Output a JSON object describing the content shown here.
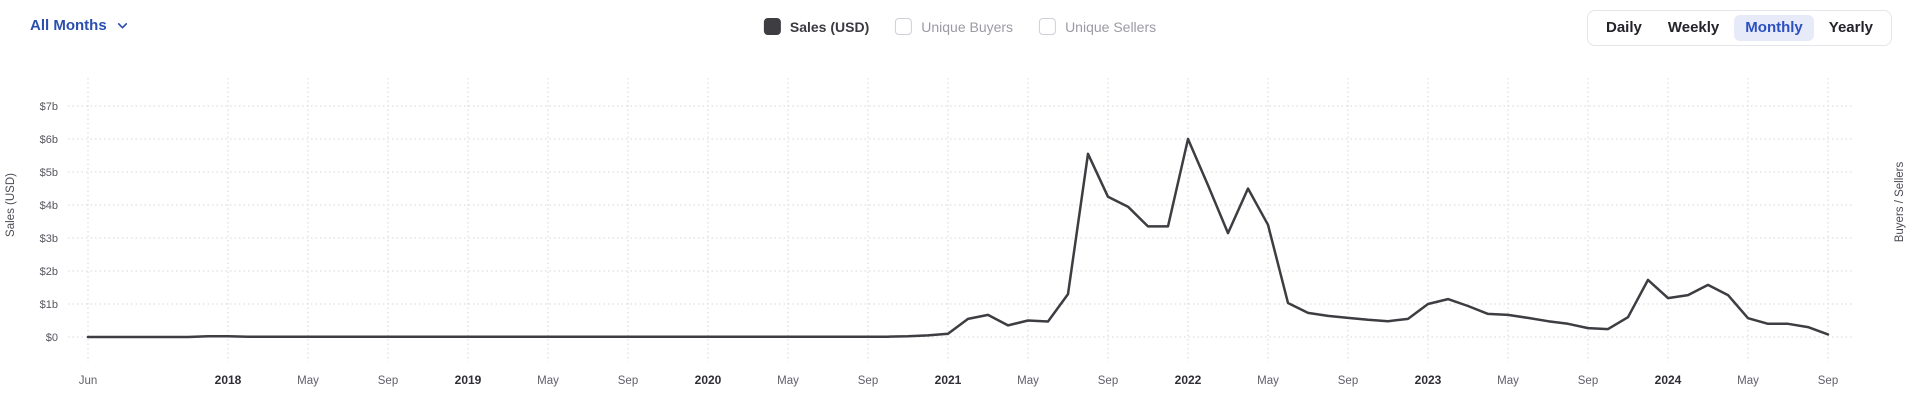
{
  "header": {
    "range_selector": {
      "label": "All Months"
    },
    "legend": [
      {
        "label": "Sales (USD)",
        "checked": true
      },
      {
        "label": "Unique Buyers",
        "checked": false
      },
      {
        "label": "Unique Sellers",
        "checked": false
      }
    ],
    "interval_buttons": [
      {
        "label": "Daily",
        "active": false
      },
      {
        "label": "Weekly",
        "active": false
      },
      {
        "label": "Monthly",
        "active": true
      },
      {
        "label": "Yearly",
        "active": false
      }
    ]
  },
  "colors": {
    "accent_blue": "#2b4fae",
    "active_button_bg": "#e7eaf8",
    "active_button_text": "#2b50c0",
    "line": "#3d3d42",
    "grid": "#d7d7db",
    "checked_checkbox": "#3d3d42"
  },
  "chart_data": {
    "type": "line",
    "title": "",
    "ylabel_left": "Sales (USD)",
    "ylabel_right": "Buyers / Sellers",
    "y_ticks": [
      "$0",
      "$1b",
      "$2b",
      "$3b",
      "$4b",
      "$5b",
      "$6b",
      "$7b"
    ],
    "ylim": [
      0,
      7.5
    ],
    "y_unit": "billions USD",
    "x_interval": "monthly",
    "x_first_month": "Jun 2017",
    "x_last_month": "Sep 2024",
    "x_ticks": [
      {
        "i": 0,
        "label": "Jun",
        "year": false
      },
      {
        "i": 7,
        "label": "2018",
        "year": true
      },
      {
        "i": 11,
        "label": "May",
        "year": false
      },
      {
        "i": 15,
        "label": "Sep",
        "year": false
      },
      {
        "i": 19,
        "label": "2019",
        "year": true
      },
      {
        "i": 23,
        "label": "May",
        "year": false
      },
      {
        "i": 27,
        "label": "Sep",
        "year": false
      },
      {
        "i": 31,
        "label": "2020",
        "year": true
      },
      {
        "i": 35,
        "label": "May",
        "year": false
      },
      {
        "i": 39,
        "label": "Sep",
        "year": false
      },
      {
        "i": 43,
        "label": "2021",
        "year": true
      },
      {
        "i": 47,
        "label": "May",
        "year": false
      },
      {
        "i": 51,
        "label": "Sep",
        "year": false
      },
      {
        "i": 55,
        "label": "2022",
        "year": true
      },
      {
        "i": 59,
        "label": "May",
        "year": false
      },
      {
        "i": 63,
        "label": "Sep",
        "year": false
      },
      {
        "i": 67,
        "label": "2023",
        "year": true
      },
      {
        "i": 71,
        "label": "May",
        "year": false
      },
      {
        "i": 75,
        "label": "Sep",
        "year": false
      },
      {
        "i": 79,
        "label": "2024",
        "year": true
      },
      {
        "i": 83,
        "label": "May",
        "year": false
      },
      {
        "i": 87,
        "label": "Sep",
        "year": false
      }
    ],
    "series": [
      {
        "name": "Sales (USD)",
        "color": "#3d3d42",
        "values": [
          0,
          0,
          0,
          0,
          0,
          0,
          0.02,
          0.02,
          0.01,
          0.01,
          0.01,
          0.01,
          0.01,
          0.01,
          0.01,
          0.01,
          0.01,
          0.01,
          0.01,
          0.01,
          0.01,
          0.01,
          0.01,
          0.01,
          0.01,
          0.01,
          0.01,
          0.01,
          0.01,
          0.01,
          0.01,
          0.01,
          0.01,
          0.01,
          0.01,
          0.01,
          0.01,
          0.01,
          0.01,
          0.01,
          0.01,
          0.02,
          0.05,
          0.1,
          0.55,
          0.67,
          0.35,
          0.5,
          0.47,
          1.3,
          5.55,
          4.25,
          3.95,
          3.35,
          3.35,
          6.0,
          4.6,
          3.15,
          4.5,
          3.4,
          1.03,
          0.73,
          0.64,
          0.58,
          0.52,
          0.48,
          0.55,
          1.0,
          1.15,
          0.94,
          0.7,
          0.67,
          0.58,
          0.48,
          0.4,
          0.27,
          0.24,
          0.6,
          1.73,
          1.18,
          1.27,
          1.58,
          1.27,
          0.57,
          0.4,
          0.4,
          0.3,
          0.08
        ]
      }
    ]
  }
}
